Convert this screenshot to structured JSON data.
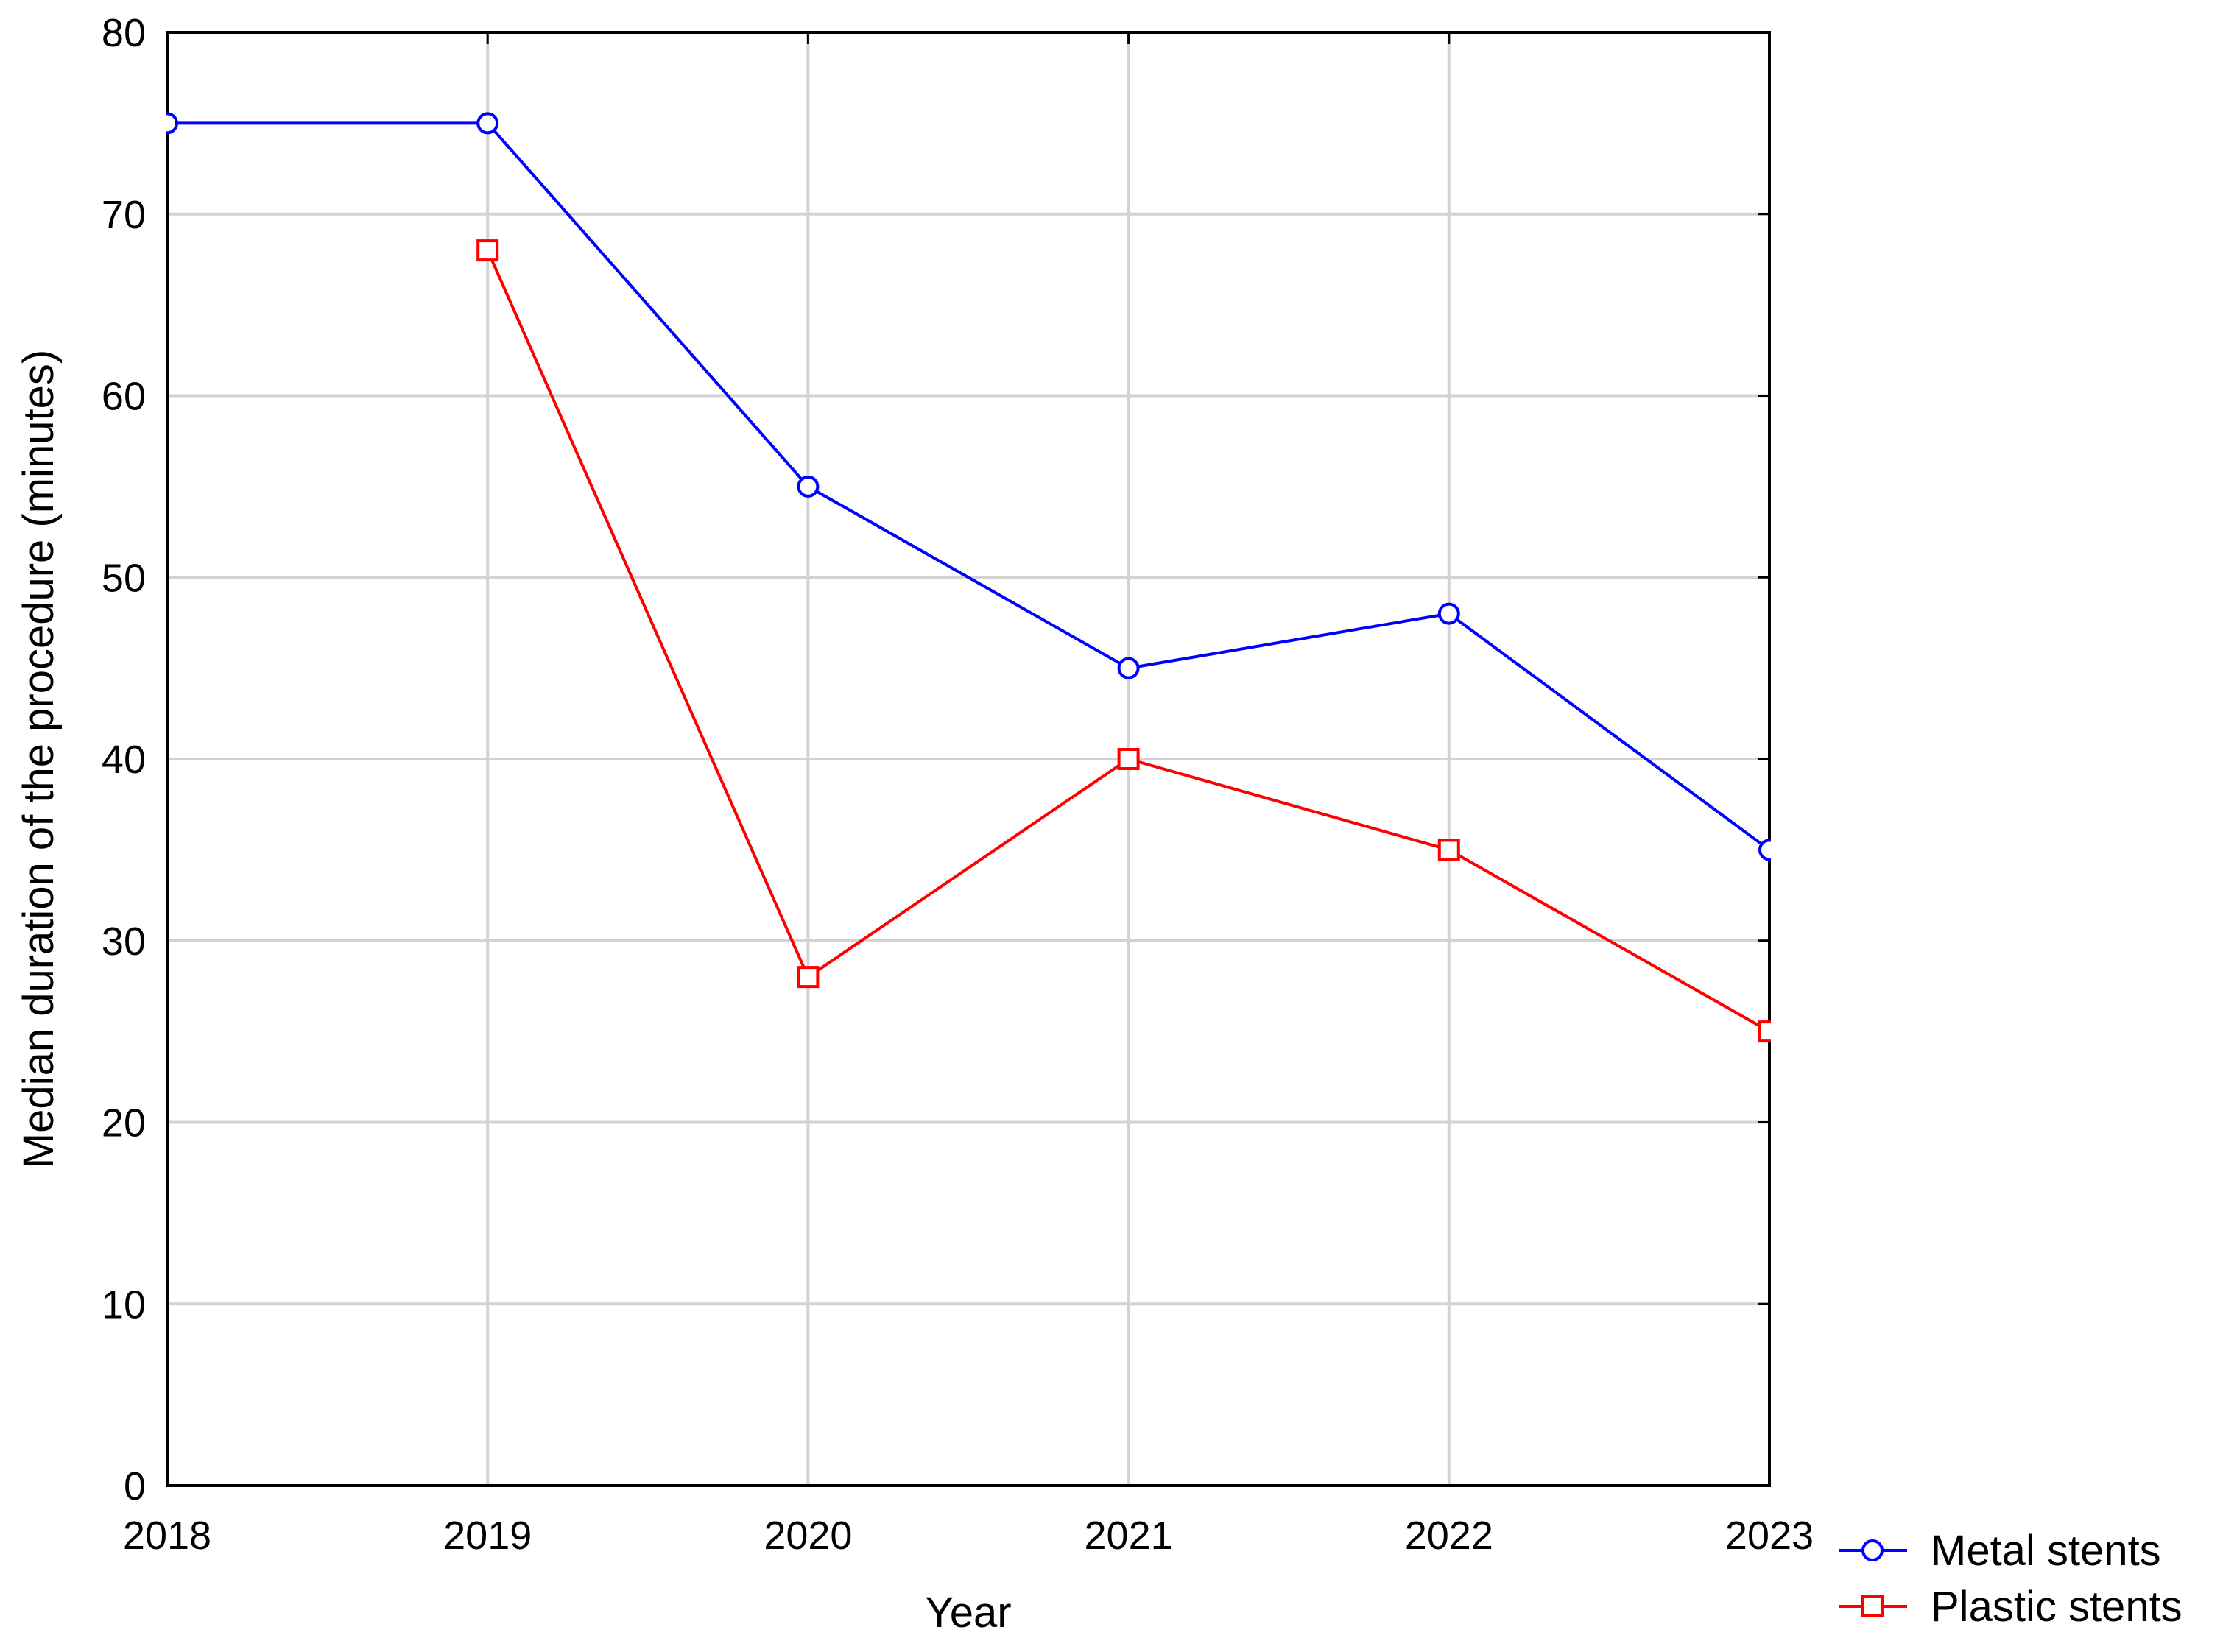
{
  "chart_data": {
    "type": "line",
    "x_label": "Year",
    "y_label": "Median duration of the procedure (minutes)",
    "x": [
      2018,
      2019,
      2020,
      2021,
      2022,
      2023
    ],
    "series": [
      {
        "name": "Metal stents",
        "color": "#0000ff",
        "marker": "circle",
        "values": [
          75,
          75,
          55,
          45,
          48,
          35
        ]
      },
      {
        "name": "Plastic stents",
        "color": "#ff0000",
        "marker": "square",
        "values": [
          null,
          68,
          28,
          40,
          35,
          25
        ]
      }
    ],
    "xlim": [
      2018,
      2023
    ],
    "xticks": [
      2018,
      2019,
      2020,
      2021,
      2022,
      2023
    ],
    "ylim": [
      0,
      80
    ],
    "yticks": [
      0,
      10,
      20,
      30,
      40,
      50,
      60,
      70,
      80
    ],
    "grid": true,
    "legend": "bottom-right"
  }
}
